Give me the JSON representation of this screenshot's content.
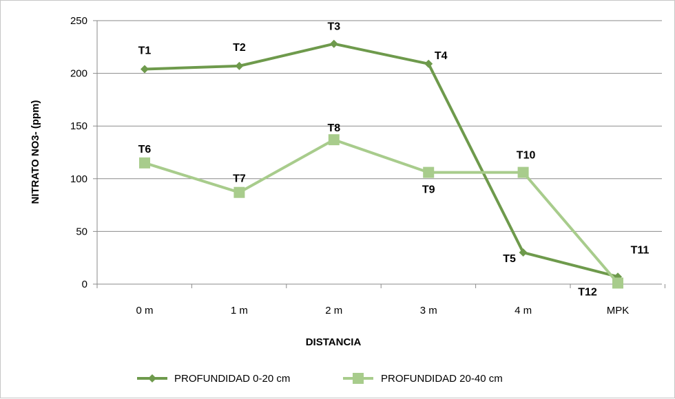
{
  "chart_data": {
    "type": "line",
    "xlabel": "DISTANCIA",
    "ylabel": "NITRATO NO3- (ppm)",
    "categories": [
      "0 m",
      "1 m",
      "2 m",
      "3 m",
      "4 m",
      "MPK"
    ],
    "ylim": [
      0,
      250
    ],
    "yticks": [
      0,
      50,
      100,
      150,
      200,
      250
    ],
    "grid": true,
    "legend_position": "bottom",
    "series": [
      {
        "name": "PROFUNDIDAD 0-20 cm",
        "color": "#6e9a4c",
        "marker": "diamond",
        "values": [
          204,
          207,
          228,
          209,
          30,
          7
        ],
        "point_labels": [
          "T1",
          "T2",
          "T3",
          "T4",
          "T5",
          "T11"
        ]
      },
      {
        "name": "PROFUNDIDAD 20-40 cm",
        "color": "#a8cc8c",
        "marker": "square",
        "values": [
          115,
          87,
          137,
          106,
          106,
          1
        ],
        "point_labels": [
          "T6",
          "T7",
          "T8",
          "T9",
          "T10",
          "T12"
        ]
      }
    ]
  }
}
